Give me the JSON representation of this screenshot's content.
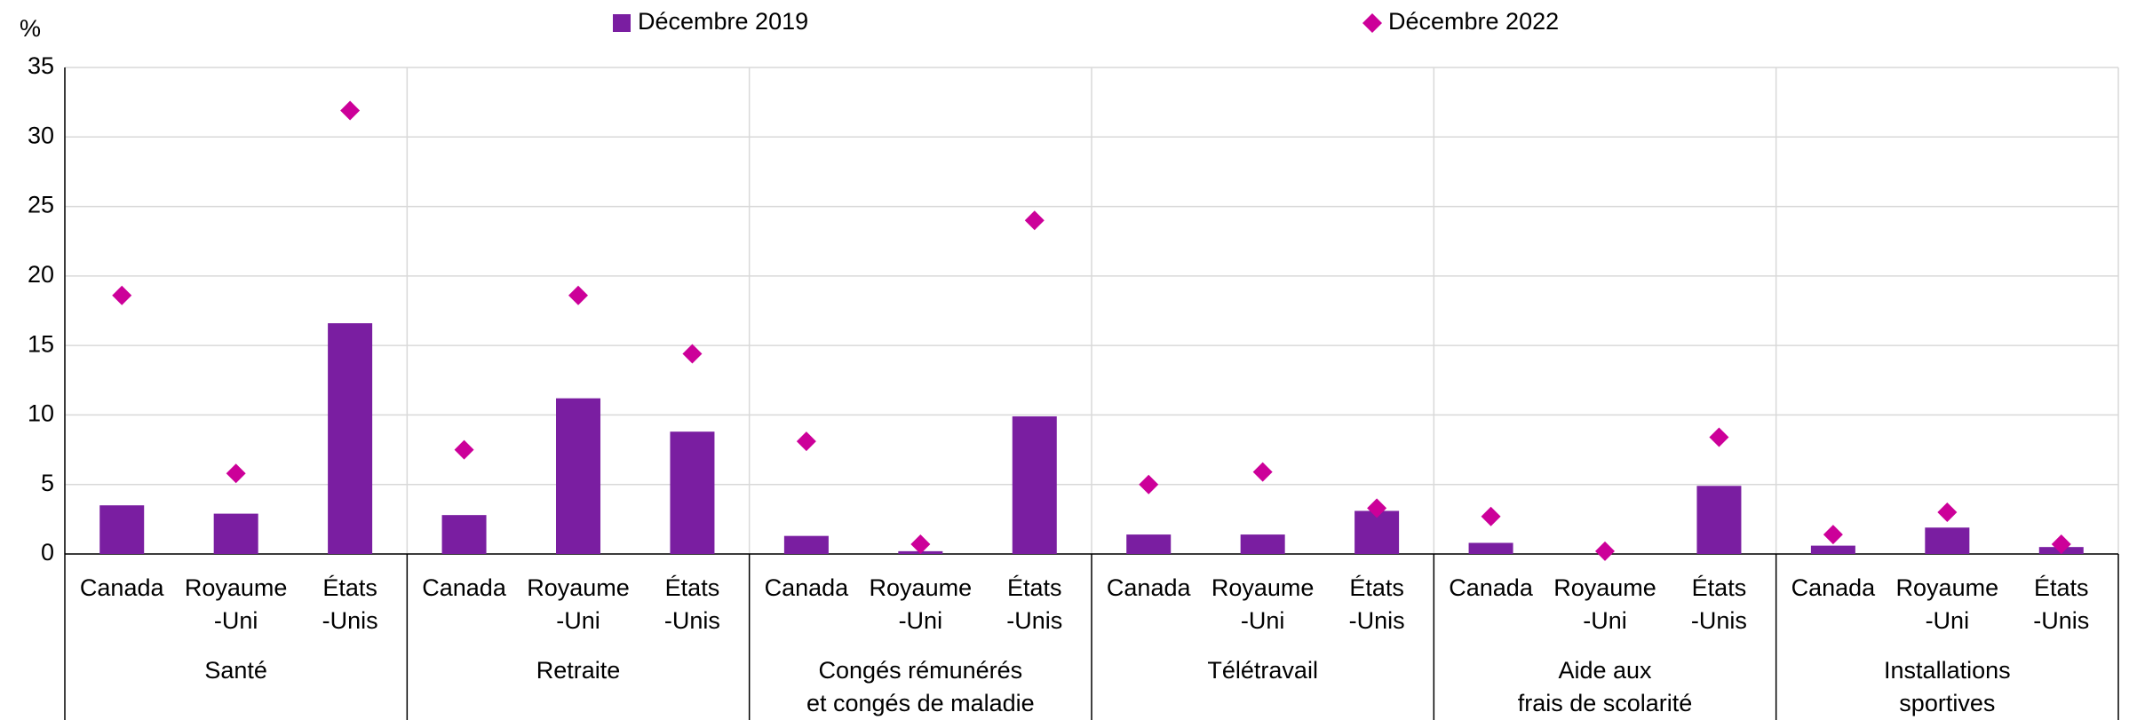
{
  "chart_data": {
    "type": "bar",
    "y_label": "%",
    "groups": [
      "Santé",
      "Retraite",
      "Congés rémunérés\net congés de maladie",
      "Télétravail",
      "Aide aux\nfrais de scolarité",
      "Installations\nsportives"
    ],
    "categories": [
      "Canada",
      "Royaume\n-Uni",
      "États\n-Unis",
      "Canada",
      "Royaume\n-Uni",
      "États\n-Unis",
      "Canada",
      "Royaume\n-Uni",
      "États\n-Unis",
      "Canada",
      "Royaume\n-Uni",
      "États\n-Unis",
      "Canada",
      "Royaume\n-Uni",
      "États\n-Unis",
      "Canada",
      "Royaume\n-Uni",
      "États\n-Unis"
    ],
    "series": [
      {
        "name": "Décembre 2019",
        "type": "bar",
        "color": "#7a1ea1",
        "values": [
          3.5,
          2.9,
          16.6,
          2.8,
          11.2,
          8.8,
          1.3,
          0.2,
          9.9,
          1.4,
          1.4,
          3.1,
          0.8,
          0.0,
          4.9,
          0.6,
          1.9,
          0.5
        ]
      },
      {
        "name": "Décembre 2022",
        "type": "diamond",
        "color": "#cc0099",
        "values": [
          18.6,
          5.8,
          31.9,
          7.5,
          18.6,
          14.4,
          8.1,
          0.7,
          24.0,
          5.0,
          5.9,
          3.3,
          2.7,
          0.2,
          8.4,
          1.4,
          3.0,
          0.7
        ]
      }
    ],
    "ylim": [
      0,
      35
    ],
    "yticks": [
      0,
      5,
      10,
      15,
      20,
      25,
      30,
      35
    ],
    "grid": true
  }
}
